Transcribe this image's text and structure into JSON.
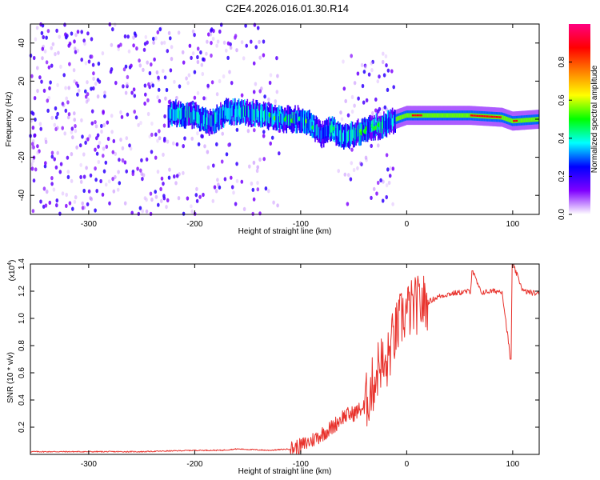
{
  "title": "C2E4.2026.016.01.30.R14",
  "chart_data": [
    {
      "type": "heatmap",
      "name": "spectrogram",
      "xlabel": "Height of straight line (km)",
      "ylabel": "Frequency (Hz)",
      "xlim": [
        -355,
        125
      ],
      "ylim": [
        -50,
        50
      ],
      "xticks": [
        -300,
        -200,
        -100,
        0,
        100
      ],
      "xtick_labels": [
        "-300",
        "-200",
        "-100",
        "0",
        "100"
      ],
      "yticks": [
        -40,
        -20,
        0,
        20,
        40
      ],
      "ytick_labels": [
        "-40",
        "-20",
        "0",
        "20",
        "40"
      ],
      "colorbar": {
        "label": "Normalized spectral amplitude",
        "range": [
          0.0,
          1.0
        ],
        "ticks": [
          0.0,
          0.2,
          0.4,
          0.6,
          0.8
        ],
        "tick_labels": [
          "0.0",
          "0.2",
          "0.4",
          "0.6",
          "0.8"
        ],
        "colormap": [
          "#ffffff",
          "#7f00ff",
          "#0000ff",
          "#00ffff",
          "#00ff00",
          "#ffff00",
          "#ff8000",
          "#ff0000",
          "#ff0080"
        ]
      },
      "ridge": {
        "description_x": [
          -220,
          -200,
          -185,
          -170,
          -140,
          -120,
          -100,
          -90,
          -80,
          -70,
          -60,
          -50,
          -40,
          -30,
          -20,
          -10,
          0,
          20,
          60,
          90,
          100,
          125
        ],
        "description_y": [
          3,
          2,
          -2,
          4,
          3,
          0,
          0,
          -3,
          -8,
          -5,
          -10,
          -8,
          -6,
          -4,
          -3,
          0,
          2,
          2,
          2,
          1,
          -1,
          0
        ]
      }
    },
    {
      "type": "line",
      "name": "snr",
      "xlabel": "Height of straight line (km)",
      "ylabel": "SNR (10 * v/v)",
      "yscale_label": "(x10",
      "yscale_exp": "4",
      "yscale_close": ")",
      "xlim": [
        -355,
        125
      ],
      "ylim": [
        0,
        1.4
      ],
      "xticks": [
        -300,
        -200,
        -100,
        0,
        100
      ],
      "xtick_labels": [
        "-300",
        "-200",
        "-100",
        "0",
        "100"
      ],
      "yticks": [
        0.2,
        0.4,
        0.6,
        0.8,
        1.0,
        1.2,
        1.4
      ],
      "ytick_labels": [
        "0.2",
        "0.4",
        "0.6",
        "0.8",
        "1.0",
        "1.2",
        "1.4"
      ],
      "line_color": "#e8322c",
      "series": [
        {
          "name": "SNR",
          "x": [
            -355,
            -300,
            -250,
            -200,
            -175,
            -160,
            -130,
            -110,
            -100,
            -90,
            -80,
            -70,
            -60,
            -50,
            -40,
            -30,
            -25,
            -20,
            -15,
            -10,
            -5,
            0,
            10,
            20,
            30,
            40,
            50,
            60,
            62,
            70,
            80,
            90,
            98,
            100,
            110,
            125
          ],
          "y": [
            0.02,
            0.02,
            0.02,
            0.03,
            0.03,
            0.04,
            0.03,
            0.04,
            0.06,
            0.1,
            0.15,
            0.2,
            0.28,
            0.3,
            0.35,
            0.55,
            0.7,
            0.6,
            0.8,
            0.9,
            1.0,
            1.05,
            1.1,
            1.12,
            1.16,
            1.18,
            1.19,
            1.2,
            1.35,
            1.19,
            1.2,
            1.2,
            0.7,
            1.4,
            1.2,
            1.18
          ]
        }
      ]
    }
  ]
}
